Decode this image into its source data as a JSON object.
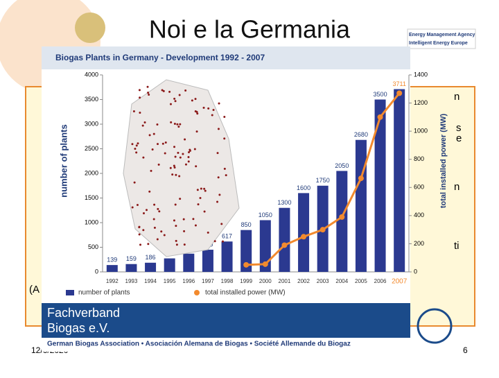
{
  "slide": {
    "title": "Noi e la Germania",
    "date": "12/6/2020",
    "page": "6",
    "agency_line1": "Energy Management Agency",
    "agency_line2": "Intelligent Energy Europe",
    "hidden_text": [
      "n",
      "s",
      "e",
      "n",
      "ti",
      "(A"
    ],
    "banner_line1": "Fachverband",
    "banner_line2": "Biogas e.V.",
    "banner_footer": "German Biogas Association  •  Asociación Alemana de Biogas  •  Société Allemande du Biogaz"
  },
  "chart_data": {
    "type": "bar",
    "title": "Biogas Plants in Germany - Development 1992 - 2007",
    "y_label": "number of plants",
    "y2_label": "total installed power (MW)",
    "categories": [
      "1992",
      "1993",
      "1994",
      "1995",
      "1996",
      "1997",
      "1998",
      "1999",
      "2000",
      "2001",
      "2002",
      "2003",
      "2004",
      "2005",
      "2006",
      "2007"
    ],
    "series": [
      {
        "name": "number of plants",
        "color": "#2b3990",
        "type": "bar",
        "values": [
          139,
          159,
          186,
          274,
          370,
          450,
          617,
          850,
          1050,
          1300,
          1600,
          1750,
          2050,
          2680,
          3500,
          3711
        ]
      },
      {
        "name": "total installed power (MW)",
        "color": "#f28a2e",
        "type": "line",
        "axis": "y2",
        "values": [
          null,
          null,
          null,
          null,
          null,
          null,
          null,
          50,
          55,
          190,
          250,
          300,
          390,
          665,
          1100,
          1270
        ]
      }
    ],
    "ylim": [
      0,
      4000
    ],
    "yticks": [
      0,
      500,
      1000,
      1500,
      2000,
      2500,
      3000,
      3500,
      4000
    ],
    "y2lim": [
      0,
      1400
    ],
    "y2ticks": [
      0,
      200,
      400,
      600,
      800,
      1000,
      1200,
      1400
    ]
  }
}
